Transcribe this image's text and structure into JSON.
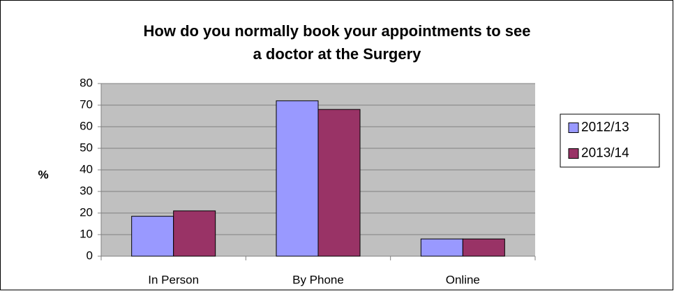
{
  "chart_data": {
    "type": "bar",
    "title": [
      "How do you normally book your appointments to see",
      "a doctor at the Surgery"
    ],
    "y_label": "%",
    "categories": [
      "In Person",
      "By Phone",
      "Online"
    ],
    "series": [
      {
        "name": "2012/13",
        "color": "#9999ff",
        "values": [
          18.5,
          72,
          8
        ]
      },
      {
        "name": "2013/14",
        "color": "#993366",
        "values": [
          21,
          68,
          8
        ]
      }
    ],
    "ylim": [
      0,
      80
    ],
    "yticks": [
      0,
      10,
      20,
      30,
      40,
      50,
      60,
      70,
      80
    ],
    "grid": true,
    "legend": "right"
  }
}
